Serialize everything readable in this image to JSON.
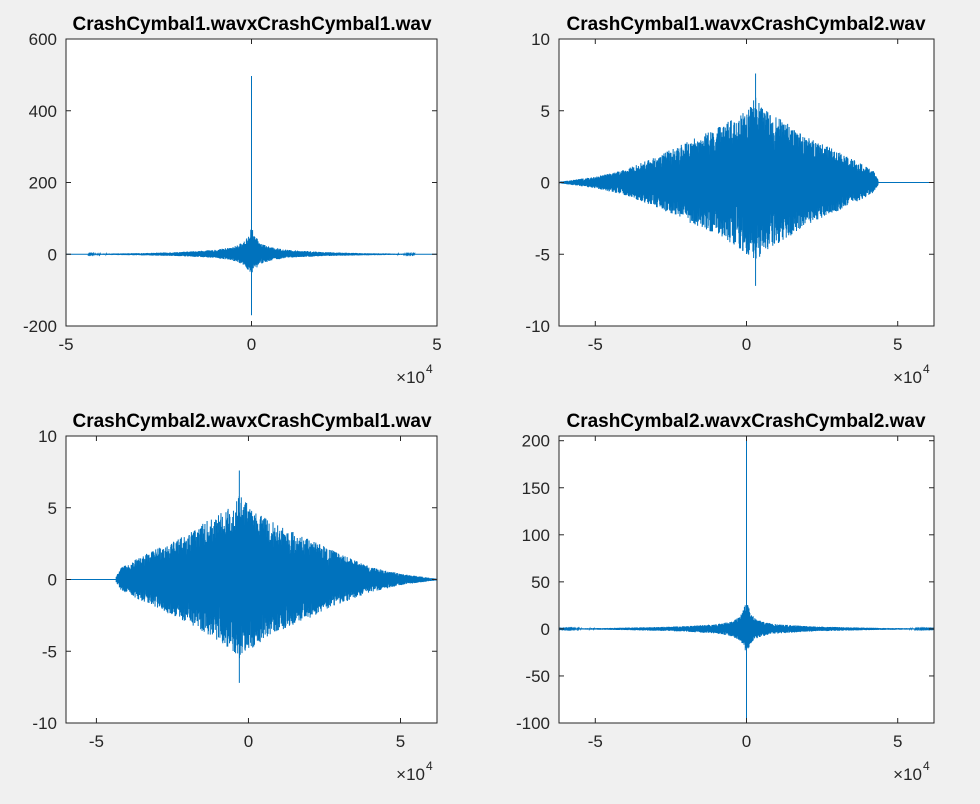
{
  "figure": {
    "background": "#f0f0f0",
    "axes_background": "#ffffff",
    "line_color": "#0072bd"
  },
  "chart_data": [
    {
      "type": "line",
      "title": "CrashCymbal1.wavxCrashCymbal1.wav",
      "xlim": [
        -50000,
        50000
      ],
      "ylim": [
        -200,
        600
      ],
      "xticks": [
        -50000,
        0,
        50000
      ],
      "xtick_labels": [
        "-5",
        "0",
        "5"
      ],
      "yticks": [
        -200,
        0,
        200,
        400,
        600
      ],
      "ytick_labels": [
        "-200",
        "0",
        "200",
        "400",
        "600"
      ],
      "x_exponent_label": {
        "base": "×10",
        "exp": "4"
      },
      "grid": false,
      "signal": {
        "kind": "autocorrelation",
        "x_range": [
          -44000,
          44000
        ],
        "baseline": 0,
        "envelope": [
          [
            -44000,
            1
          ],
          [
            -30000,
            3
          ],
          [
            -20000,
            6
          ],
          [
            -10000,
            12
          ],
          [
            -5000,
            20
          ],
          [
            -2000,
            35
          ],
          [
            -500,
            60
          ],
          [
            0,
            80
          ],
          [
            500,
            60
          ],
          [
            2000,
            35
          ],
          [
            5000,
            20
          ],
          [
            10000,
            12
          ],
          [
            20000,
            6
          ],
          [
            30000,
            3
          ],
          [
            44000,
            1
          ]
        ],
        "envelope_low": [
          [
            -44000,
            -1
          ],
          [
            -30000,
            -3
          ],
          [
            -20000,
            -5
          ],
          [
            -10000,
            -10
          ],
          [
            -5000,
            -18
          ],
          [
            -2000,
            -30
          ],
          [
            -500,
            -50
          ],
          [
            0,
            -60
          ],
          [
            500,
            -50
          ],
          [
            2000,
            -30
          ],
          [
            5000,
            -18
          ],
          [
            10000,
            -10
          ],
          [
            20000,
            -5
          ],
          [
            30000,
            -3
          ],
          [
            44000,
            -1
          ]
        ],
        "peak_max": 497,
        "peak_min": -170,
        "peak_x": 0
      }
    },
    {
      "type": "line",
      "title": "CrashCymbal1.wavxCrashCymbal2.wav",
      "xlim": [
        -62000,
        62000
      ],
      "ylim": [
        -10,
        10
      ],
      "xticks": [
        -50000,
        0,
        50000
      ],
      "xtick_labels": [
        "-5",
        "0",
        "5"
      ],
      "yticks": [
        -10,
        -5,
        0,
        5,
        10
      ],
      "ytick_labels": [
        "-10",
        "-5",
        "0",
        "5",
        "10"
      ],
      "x_exponent_label": {
        "base": "×10",
        "exp": "4"
      },
      "grid": false,
      "signal": {
        "kind": "cross-correlation",
        "x_range": [
          -62000,
          43500
        ],
        "baseline": 0,
        "envelope": [
          [
            -62000,
            0.05
          ],
          [
            -50000,
            0.4
          ],
          [
            -40000,
            0.9
          ],
          [
            -30000,
            1.8
          ],
          [
            -20000,
            2.8
          ],
          [
            -10000,
            3.8
          ],
          [
            -3000,
            4.6
          ],
          [
            0,
            5.2
          ],
          [
            3000,
            6.0
          ],
          [
            5000,
            5.2
          ],
          [
            10000,
            4.6
          ],
          [
            20000,
            3.2
          ],
          [
            30000,
            2.2
          ],
          [
            38000,
            1.3
          ],
          [
            42000,
            0.8
          ],
          [
            43500,
            0.2
          ]
        ],
        "envelope_low": [
          [
            -62000,
            -0.05
          ],
          [
            -50000,
            -0.4
          ],
          [
            -40000,
            -0.9
          ],
          [
            -30000,
            -1.7
          ],
          [
            -20000,
            -2.7
          ],
          [
            -10000,
            -3.6
          ],
          [
            -3000,
            -4.5
          ],
          [
            0,
            -5.0
          ],
          [
            3000,
            -5.6
          ],
          [
            5000,
            -5.0
          ],
          [
            10000,
            -4.3
          ],
          [
            20000,
            -3.0
          ],
          [
            30000,
            -2.0
          ],
          [
            38000,
            -1.2
          ],
          [
            42000,
            -0.7
          ],
          [
            43500,
            -0.2
          ]
        ],
        "peak_max": 7.6,
        "peak_min": -7.2,
        "peak_x": 3000
      }
    },
    {
      "type": "line",
      "title": "CrashCymbal2.wavxCrashCymbal1.wav",
      "xlim": [
        -60000,
        62000
      ],
      "ylim": [
        -10,
        10
      ],
      "xticks": [
        -50000,
        0,
        50000
      ],
      "xtick_labels": [
        "-5",
        "0",
        "5"
      ],
      "yticks": [
        -10,
        -5,
        0,
        5,
        10
      ],
      "ytick_labels": [
        "-10",
        "-5",
        "0",
        "5",
        "10"
      ],
      "x_exponent_label": {
        "base": "×10",
        "exp": "4"
      },
      "grid": false,
      "signal": {
        "kind": "cross-correlation",
        "x_range": [
          -43500,
          62000
        ],
        "baseline": 0,
        "envelope": [
          [
            -43500,
            0.2
          ],
          [
            -42000,
            0.8
          ],
          [
            -38000,
            1.3
          ],
          [
            -30000,
            2.2
          ],
          [
            -20000,
            3.2
          ],
          [
            -10000,
            4.6
          ],
          [
            -5000,
            5.2
          ],
          [
            -3000,
            6.0
          ],
          [
            0,
            5.2
          ],
          [
            3000,
            4.6
          ],
          [
            10000,
            3.8
          ],
          [
            20000,
            2.8
          ],
          [
            30000,
            1.8
          ],
          [
            40000,
            0.9
          ],
          [
            50000,
            0.4
          ],
          [
            62000,
            0.05
          ]
        ],
        "envelope_low": [
          [
            -43500,
            -0.2
          ],
          [
            -42000,
            -0.7
          ],
          [
            -38000,
            -1.2
          ],
          [
            -30000,
            -2.0
          ],
          [
            -20000,
            -3.0
          ],
          [
            -10000,
            -4.3
          ],
          [
            -5000,
            -5.0
          ],
          [
            -3000,
            -5.6
          ],
          [
            0,
            -5.0
          ],
          [
            3000,
            -4.5
          ],
          [
            10000,
            -3.6
          ],
          [
            20000,
            -2.7
          ],
          [
            30000,
            -1.7
          ],
          [
            40000,
            -0.9
          ],
          [
            50000,
            -0.4
          ],
          [
            62000,
            -0.05
          ]
        ],
        "peak_max": 7.6,
        "peak_min": -7.2,
        "peak_x": -3000
      }
    },
    {
      "type": "line",
      "title": "CrashCymbal2.wavxCrashCymbal2.wav",
      "xlim": [
        -62000,
        62000
      ],
      "ylim": [
        -100,
        205
      ],
      "xticks": [
        -50000,
        0,
        50000
      ],
      "xtick_labels": [
        "-5",
        "0",
        "5"
      ],
      "yticks": [
        -100,
        -50,
        0,
        50,
        100,
        150,
        200
      ],
      "ytick_labels": [
        "-100",
        "-50",
        "0",
        "50",
        "100",
        "150",
        "200"
      ],
      "x_exponent_label": {
        "base": "×10",
        "exp": "4"
      },
      "grid": false,
      "signal": {
        "kind": "autocorrelation",
        "x_range": [
          -62000,
          62000
        ],
        "baseline": 0,
        "envelope": [
          [
            -62000,
            0.3
          ],
          [
            -45000,
            1
          ],
          [
            -30000,
            2
          ],
          [
            -20000,
            3
          ],
          [
            -10000,
            5
          ],
          [
            -5000,
            8
          ],
          [
            -2000,
            14
          ],
          [
            -500,
            25
          ],
          [
            0,
            30
          ],
          [
            500,
            25
          ],
          [
            2000,
            14
          ],
          [
            5000,
            8
          ],
          [
            10000,
            5
          ],
          [
            20000,
            3
          ],
          [
            30000,
            2
          ],
          [
            45000,
            1
          ],
          [
            62000,
            0.3
          ]
        ],
        "envelope_low": [
          [
            -62000,
            -0.3
          ],
          [
            -45000,
            -1
          ],
          [
            -30000,
            -2
          ],
          [
            -20000,
            -3
          ],
          [
            -10000,
            -5
          ],
          [
            -5000,
            -8
          ],
          [
            -2000,
            -13
          ],
          [
            -500,
            -22
          ],
          [
            0,
            -28
          ],
          [
            500,
            -22
          ],
          [
            2000,
            -13
          ],
          [
            5000,
            -8
          ],
          [
            10000,
            -5
          ],
          [
            20000,
            -3
          ],
          [
            30000,
            -2
          ],
          [
            45000,
            -1
          ],
          [
            62000,
            -0.3
          ]
        ],
        "peak_max": 205,
        "peak_min": -100,
        "peak_x": 0
      }
    }
  ]
}
